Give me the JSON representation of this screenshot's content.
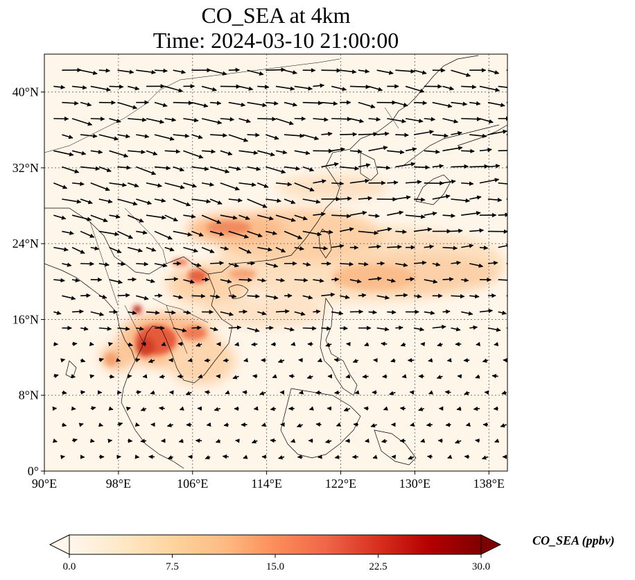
{
  "title": {
    "line1": "CO_SEA at 4km",
    "line2": "Time: 2024-03-10 21:00:00"
  },
  "map": {
    "lon_range": [
      90,
      140
    ],
    "lat_range": [
      0,
      44
    ],
    "x_ticks": [
      "90°E",
      "98°E",
      "106°E",
      "114°E",
      "122°E",
      "130°E",
      "138°E"
    ],
    "x_tick_values": [
      90,
      98,
      106,
      114,
      122,
      130,
      138
    ],
    "y_ticks": [
      "0°",
      "8°N",
      "16°N",
      "24°N",
      "32°N",
      "40°N"
    ],
    "y_tick_values": [
      0,
      8,
      16,
      24,
      32,
      40
    ],
    "gridlines": true,
    "field": "CO_SEA concentration (filled), wind vectors at 4km"
  },
  "colorbar": {
    "label": "CO_SEA (ppbv)",
    "ticks": [
      "0.0",
      "7.5",
      "15.0",
      "22.5",
      "30.0"
    ],
    "tick_values": [
      0,
      7.5,
      15,
      22.5,
      30
    ],
    "range": [
      0,
      30
    ],
    "colormap": "OrRd",
    "extend": "both",
    "colors": [
      "#fff7ec",
      "#fee8c8",
      "#fdd49e",
      "#fdbb84",
      "#fc8d59",
      "#ef6548",
      "#d7301f",
      "#b30000",
      "#7f0000"
    ]
  }
}
